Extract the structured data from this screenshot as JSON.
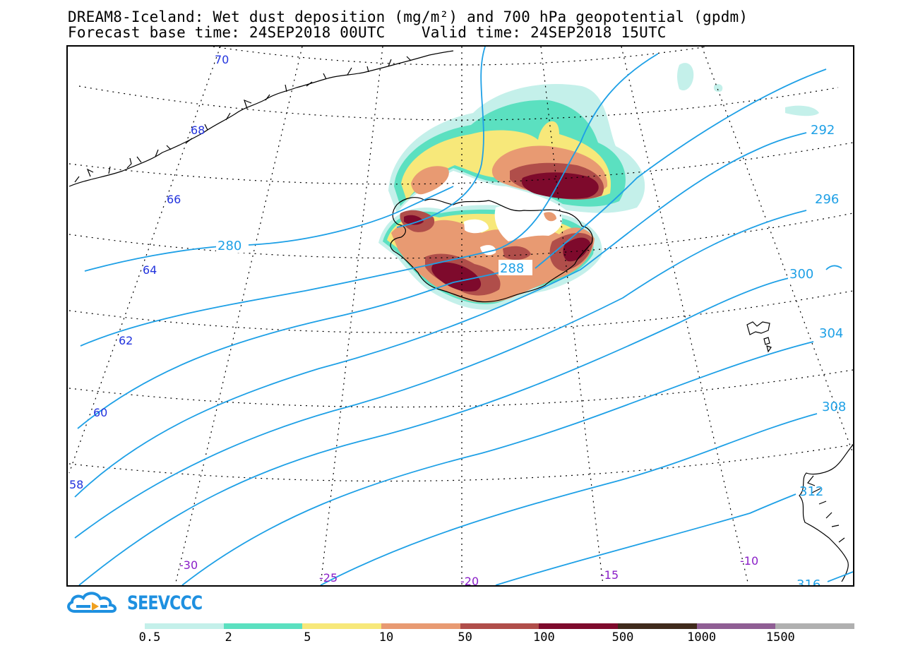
{
  "title": {
    "line1": "DREAM8-Iceland: Wet dust deposition (mg/m²) and 700 hPa geopotential (gpdm)",
    "line2": "Forecast base time: 24SEP2018 00UTC    Valid time: 24SEP2018 15UTC"
  },
  "map": {
    "region": "Iceland",
    "field": "Wet dust deposition",
    "field_units": "mg/m²",
    "contour_field": "700 hPa geopotential",
    "contour_units": "gpdm",
    "latitude_labels": [
      "70",
      "68",
      "66",
      "64",
      "62",
      "60",
      "58"
    ],
    "longitude_labels": [
      "-30",
      "-25",
      "-20",
      "-15",
      "-10"
    ],
    "contour_labels": [
      "280",
      "288",
      "292",
      "296",
      "300",
      "304",
      "308",
      "312",
      "316"
    ],
    "colors": {
      "coastline": "#000000",
      "graticule": "#000000",
      "contour": "#1ea0e6",
      "lat_label": "#2233dd",
      "lon_label": "#8a1ec8"
    }
  },
  "logo": {
    "text": "SEEVCCC",
    "icon": "cloud-logo-icon",
    "color": "#1e90e0"
  },
  "legend": {
    "labels": [
      "0.5",
      "2",
      "5",
      "10",
      "50",
      "100",
      "500",
      "1000",
      "1500"
    ],
    "colors": [
      "#c4f0ea",
      "#5be0c0",
      "#f7e87a",
      "#e89a72",
      "#b04e4a",
      "#7e0a2c",
      "#3f2a1c",
      "#8f5e94",
      "#b0b0b0"
    ]
  }
}
